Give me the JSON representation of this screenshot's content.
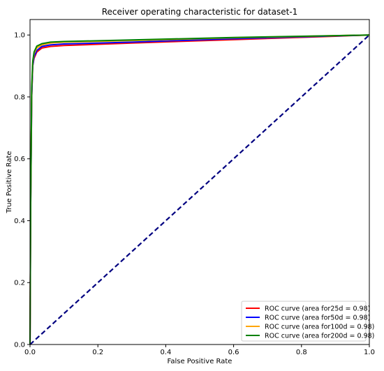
{
  "chart_data": {
    "type": "line",
    "title": "Receiver operating characteristic for dataset-1",
    "xlabel": "False Positive Rate",
    "ylabel": "True Positive Rate",
    "xlim": [
      0.0,
      1.0
    ],
    "ylim": [
      0.0,
      1.05
    ],
    "xticks": [
      "0.0",
      "0.2",
      "0.4",
      "0.6",
      "0.8",
      "1.0"
    ],
    "yticks": [
      "0.0",
      "0.2",
      "0.4",
      "0.6",
      "0.8",
      "1.0"
    ],
    "grid": false,
    "legend_position": "bottom-right",
    "series": [
      {
        "name": "ROC curve (area for25d = 0.98)",
        "color": "#ff0000",
        "x": [
          0.0,
          0.002,
          0.005,
          0.008,
          0.012,
          0.02,
          0.035,
          0.06,
          0.1,
          0.3,
          0.6,
          0.9,
          1.0
        ],
        "y": [
          0.0,
          0.45,
          0.8,
          0.9,
          0.925,
          0.945,
          0.958,
          0.963,
          0.966,
          0.974,
          0.985,
          0.996,
          1.0
        ]
      },
      {
        "name": "ROC curve (area for50d = 0.98)",
        "color": "#0000ff",
        "x": [
          0.0,
          0.002,
          0.005,
          0.008,
          0.012,
          0.02,
          0.035,
          0.06,
          0.1,
          0.3,
          0.6,
          0.9,
          1.0
        ],
        "y": [
          0.0,
          0.45,
          0.8,
          0.9,
          0.93,
          0.95,
          0.963,
          0.968,
          0.971,
          0.977,
          0.988,
          0.997,
          1.0
        ]
      },
      {
        "name": "ROC curve (area for100d = 0.98)",
        "color": "#ffa500",
        "x": [
          0.0,
          0.002,
          0.005,
          0.008,
          0.012,
          0.02,
          0.035,
          0.06,
          0.1,
          0.3,
          0.6,
          0.9,
          1.0
        ],
        "y": [
          0.0,
          0.46,
          0.82,
          0.91,
          0.94,
          0.958,
          0.968,
          0.974,
          0.977,
          0.982,
          0.991,
          0.998,
          1.0
        ]
      },
      {
        "name": "ROC curve (area for200d = 0.98)",
        "color": "#008000",
        "x": [
          0.0,
          0.002,
          0.005,
          0.008,
          0.012,
          0.02,
          0.035,
          0.06,
          0.1,
          0.3,
          0.6,
          0.9,
          1.0
        ],
        "y": [
          0.0,
          0.47,
          0.83,
          0.915,
          0.945,
          0.964,
          0.972,
          0.977,
          0.979,
          0.984,
          0.992,
          0.998,
          1.0
        ]
      }
    ],
    "reference_line": {
      "color": "#000080",
      "style": "dashed",
      "x": [
        0.0,
        1.0
      ],
      "y": [
        0.0,
        1.0
      ]
    }
  }
}
